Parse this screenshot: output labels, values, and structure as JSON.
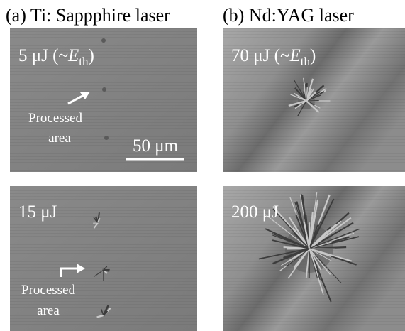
{
  "header": {
    "left_title": "(a) Ti: Sappphire laser",
    "right_title": "(b) Nd:YAG laser"
  },
  "panels": [
    {
      "label": {
        "text": "5 μJ (~",
        "italic": "E",
        "subscript": "th",
        "close": ")"
      },
      "annotation": [
        "Processed",
        "area"
      ],
      "scale_bar": "50 μm"
    },
    {
      "label": {
        "text": "70 μJ (~",
        "italic": "E",
        "subscript": "th",
        "close": ")"
      }
    },
    {
      "label": {
        "text": "15 μJ"
      },
      "annotation": [
        "Processed",
        "area"
      ]
    },
    {
      "label": {
        "text": "200 μJ"
      }
    }
  ]
}
